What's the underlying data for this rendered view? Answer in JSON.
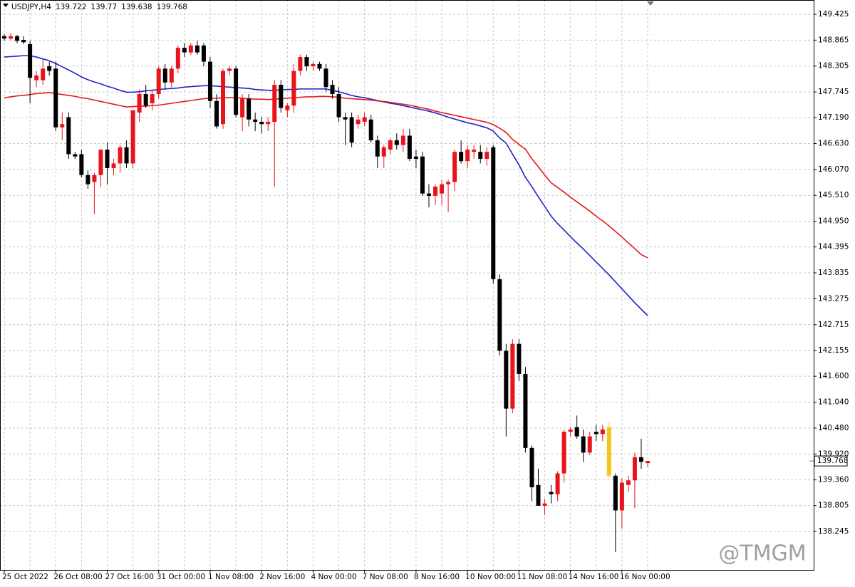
{
  "chart_data": {
    "type": "candlestick",
    "title": "USDJPY,H4",
    "watermark": "@TMGM",
    "categories": [
      "25 Oct 2022",
      null,
      null,
      null,
      null,
      null,
      null,
      null,
      "26 Oct 08:00",
      null,
      null,
      null,
      null,
      null,
      null,
      null,
      "27 Oct 16:00",
      null,
      null,
      null,
      null,
      null,
      null,
      null,
      "31 Oct 00:00",
      null,
      null,
      null,
      null,
      null,
      null,
      null,
      "1 Nov 08:00",
      null,
      null,
      null,
      null,
      null,
      null,
      null,
      "2 Nov 16:00",
      null,
      null,
      null,
      null,
      null,
      null,
      null,
      "4 Nov 00:00",
      null,
      null,
      null,
      null,
      null,
      null,
      null,
      "7 Nov 08:00",
      null,
      null,
      null,
      null,
      null,
      null,
      null,
      "8 Nov 16:00",
      null,
      null,
      null,
      null,
      null,
      null,
      null,
      "10 Nov 00:00",
      null,
      null,
      null,
      null,
      null,
      null,
      null,
      "11 Nov 08:00",
      null,
      null,
      null,
      null,
      null,
      null,
      null,
      "14 Nov 16:00",
      null,
      null,
      null,
      null,
      null,
      null,
      null,
      "16 Nov 00:00",
      null,
      null,
      null,
      null
    ],
    "open": [
      148.95,
      148.9,
      148.95,
      148.87,
      148.78,
      148.0,
      148.0,
      148.3,
      148.25,
      146.98,
      147.2,
      146.4,
      146.4,
      145.95,
      145.8,
      145.95,
      146.5,
      146.1,
      146.2,
      146.55,
      146.2,
      147.3,
      147.7,
      147.5,
      147.7,
      148.25,
      147.95,
      148.25,
      148.7,
      148.6,
      148.75,
      148.75,
      148.4,
      147.55,
      147.05,
      148.2,
      148.25,
      147.2,
      147.6,
      147.15,
      147.1,
      147.05,
      147.1,
      147.9,
      147.35,
      147.45,
      148.2,
      148.5,
      148.3,
      148.35,
      148.25,
      147.9,
      147.7,
      147.2,
      147.2,
      147.05,
      147.1,
      147.15,
      146.7,
      146.35,
      146.5,
      146.7,
      146.6,
      146.8,
      146.35,
      146.35,
      145.55,
      145.5,
      145.55,
      145.75,
      145.8,
      146.45,
      146.25,
      146.45,
      146.45,
      146.3,
      146.55,
      143.7,
      142.15,
      140.9,
      142.3,
      141.65,
      140.05,
      139.25,
      138.8,
      139.1,
      139.05,
      139.5,
      140.4,
      140.5,
      140.3,
      139.95,
      140.4,
      140.35,
      140.5,
      139.45,
      138.7,
      139.25,
      139.35,
      139.85,
      139.722
    ],
    "high": [
      149.0,
      149.02,
      148.98,
      148.95,
      148.85,
      148.2,
      148.45,
      148.4,
      148.4,
      147.3,
      147.3,
      146.45,
      146.5,
      146.05,
      146.0,
      146.5,
      146.65,
      146.3,
      146.6,
      146.7,
      147.35,
      147.8,
      147.9,
      147.8,
      148.3,
      148.35,
      148.3,
      148.75,
      148.8,
      148.8,
      148.85,
      148.8,
      148.5,
      147.7,
      148.25,
      148.3,
      148.3,
      147.7,
      147.7,
      147.3,
      147.2,
      147.2,
      148.0,
      148.0,
      147.5,
      148.35,
      148.55,
      148.55,
      148.4,
      148.4,
      148.35,
      148.0,
      147.85,
      147.3,
      147.3,
      147.25,
      147.3,
      147.25,
      146.8,
      146.6,
      146.75,
      146.85,
      146.95,
      146.95,
      146.5,
      146.45,
      145.75,
      145.75,
      145.85,
      145.85,
      146.5,
      146.7,
      146.6,
      146.6,
      146.6,
      146.55,
      146.6,
      143.8,
      142.3,
      142.4,
      142.4,
      141.8,
      140.1,
      139.6,
      138.95,
      139.25,
      139.55,
      140.45,
      140.5,
      140.75,
      140.45,
      140.4,
      140.55,
      140.55,
      140.6,
      139.5,
      139.4,
      139.45,
      139.95,
      140.25,
      139.77
    ],
    "low": [
      148.85,
      148.86,
      148.8,
      148.78,
      147.5,
      147.85,
      147.9,
      148.1,
      146.9,
      146.7,
      146.3,
      146.3,
      145.9,
      145.65,
      145.1,
      145.7,
      145.75,
      145.95,
      146.0,
      146.1,
      146.1,
      147.1,
      147.4,
      147.35,
      147.6,
      147.8,
      147.85,
      148.15,
      148.5,
      148.55,
      148.55,
      148.3,
      147.4,
      146.95,
      146.95,
      148.1,
      147.2,
      146.9,
      147.0,
      146.9,
      146.85,
      146.9,
      145.7,
      147.3,
      147.2,
      147.3,
      148.1,
      148.2,
      148.2,
      148.2,
      147.75,
      147.6,
      147.1,
      146.6,
      146.55,
      146.95,
      147.0,
      146.65,
      146.1,
      146.1,
      146.4,
      146.5,
      146.45,
      146.25,
      146.1,
      145.5,
      145.25,
      145.3,
      145.3,
      145.15,
      145.6,
      146.2,
      146.1,
      146.3,
      146.2,
      146.15,
      143.6,
      142.05,
      140.3,
      140.8,
      141.5,
      139.95,
      138.9,
      138.8,
      138.6,
      138.85,
      138.9,
      139.3,
      140.3,
      140.25,
      139.75,
      139.9,
      140.2,
      140.2,
      139.4,
      137.8,
      138.3,
      139.1,
      138.75,
      139.6,
      139.638
    ],
    "close": [
      148.9,
      148.95,
      148.85,
      148.82,
      148.05,
      148.1,
      148.25,
      148.2,
      146.98,
      147.05,
      146.4,
      146.35,
      145.95,
      145.75,
      145.95,
      146.5,
      146.1,
      146.2,
      146.55,
      146.2,
      147.35,
      147.7,
      147.45,
      147.7,
      148.25,
      147.95,
      148.25,
      148.7,
      148.6,
      148.75,
      148.6,
      148.4,
      147.55,
      147.0,
      148.2,
      148.25,
      147.25,
      147.6,
      147.15,
      147.1,
      147.05,
      147.1,
      147.9,
      147.4,
      147.45,
      148.2,
      148.5,
      148.3,
      148.35,
      148.25,
      147.85,
      147.7,
      147.2,
      147.15,
      146.65,
      147.15,
      147.2,
      146.7,
      146.35,
      146.55,
      146.7,
      146.6,
      146.8,
      146.3,
      146.3,
      145.55,
      145.5,
      145.7,
      145.75,
      145.8,
      146.45,
      146.25,
      146.5,
      146.5,
      146.3,
      146.45,
      143.7,
      142.15,
      140.9,
      142.3,
      141.65,
      140.05,
      139.2,
      138.8,
      138.85,
      139.05,
      139.5,
      140.4,
      140.45,
      140.3,
      139.95,
      140.3,
      140.35,
      140.45,
      139.45,
      138.7,
      139.3,
      139.35,
      139.85,
      139.75,
      139.768
    ],
    "up_color": "#e8141c",
    "down_color": "#000000",
    "highlight_index": 94,
    "highlight_color": "#f5c518",
    "series": [
      {
        "color": "#1f22c4",
        "values": [
          148.5,
          148.51,
          148.52,
          148.53,
          148.53,
          148.5,
          148.46,
          148.42,
          148.36,
          148.29,
          148.22,
          148.15,
          148.07,
          148.01,
          147.96,
          147.92,
          147.87,
          147.83,
          147.78,
          147.74,
          147.74,
          147.75,
          147.77,
          147.78,
          147.8,
          147.81,
          147.82,
          147.83,
          147.85,
          147.86,
          147.87,
          147.88,
          147.88,
          147.87,
          147.86,
          147.85,
          147.84,
          147.83,
          147.82,
          147.8,
          147.79,
          147.78,
          147.78,
          147.79,
          147.8,
          147.8,
          147.81,
          147.81,
          147.81,
          147.81,
          147.81,
          147.78,
          147.75,
          147.71,
          147.67,
          147.64,
          147.62,
          147.59,
          147.56,
          147.53,
          147.5,
          147.48,
          147.45,
          147.42,
          147.39,
          147.36,
          147.33,
          147.29,
          147.25,
          147.2,
          147.16,
          147.12,
          147.08,
          147.05,
          147.01,
          146.97,
          146.9,
          146.75,
          146.64,
          146.4,
          146.17,
          145.9,
          145.7,
          145.48,
          145.27,
          145.06,
          144.9,
          144.76,
          144.62,
          144.48,
          144.35,
          144.21,
          144.07,
          143.93,
          143.79,
          143.64,
          143.49,
          143.34,
          143.19,
          143.05,
          142.91
        ]
      },
      {
        "color": "#e41a1c",
        "values": [
          147.62,
          147.64,
          147.66,
          147.67,
          147.69,
          147.71,
          147.72,
          147.73,
          147.71,
          147.69,
          147.67,
          147.65,
          147.62,
          147.6,
          147.57,
          147.54,
          147.51,
          147.48,
          147.45,
          147.42,
          147.43,
          147.44,
          147.44,
          147.45,
          147.46,
          147.48,
          147.5,
          147.52,
          147.54,
          147.56,
          147.58,
          147.6,
          147.61,
          147.61,
          147.62,
          147.62,
          147.62,
          147.61,
          147.6,
          147.59,
          147.59,
          147.58,
          147.59,
          147.6,
          147.61,
          147.62,
          147.63,
          147.64,
          147.64,
          147.65,
          147.65,
          147.64,
          147.63,
          147.61,
          147.6,
          147.59,
          147.58,
          147.57,
          147.55,
          147.54,
          147.52,
          147.5,
          147.48,
          147.46,
          147.43,
          147.4,
          147.37,
          147.33,
          147.3,
          147.27,
          147.24,
          147.21,
          147.18,
          147.15,
          147.12,
          147.09,
          147.04,
          146.96,
          146.87,
          146.72,
          146.61,
          146.51,
          146.3,
          146.13,
          145.95,
          145.78,
          145.68,
          145.58,
          145.47,
          145.37,
          145.27,
          145.17,
          145.06,
          144.96,
          144.85,
          144.73,
          144.61,
          144.48,
          144.36,
          144.23,
          144.16
        ]
      }
    ],
    "ylim": [
      137.414,
      149.733
    ],
    "yticks": [
      149.425,
      148.865,
      148.305,
      147.745,
      {
        "value": 147.19,
        "label": "147.190"
      },
      {
        "value": 146.63,
        "label": "146.630"
      },
      {
        "value": 146.07,
        "label": "146.070"
      },
      {
        "value": 145.51,
        "label": "145.510"
      },
      {
        "value": 144.95,
        "label": "144.950"
      },
      144.395,
      143.835,
      143.275,
      142.715,
      142.155,
      {
        "value": 141.6,
        "label": "141.600"
      },
      {
        "value": 141.04,
        "label": "141.040"
      },
      {
        "value": 140.48,
        "label": "140.480"
      },
      {
        "value": 139.92,
        "label": "139.920"
      },
      {
        "value": 139.36,
        "label": "139.360"
      },
      138.805,
      138.245
    ],
    "grid": true
  }
}
